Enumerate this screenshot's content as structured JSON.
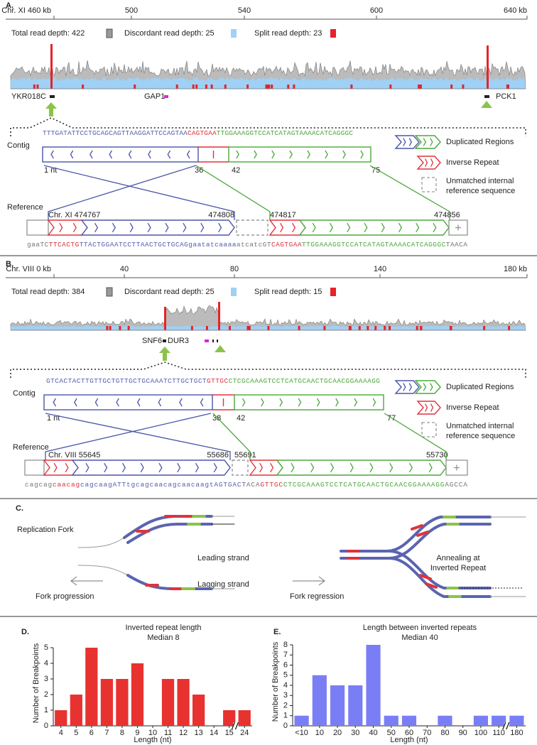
{
  "panel_a": {
    "label": "A.",
    "axis_labels": [
      "Chr. XI 460 kb",
      "500",
      "540",
      "600",
      "640 kb"
    ],
    "legend": [
      "Total read depth: 422",
      "Discordant read depth: 25",
      "Split read depth: 23"
    ],
    "genes": [
      "YKR018C",
      "GAP1",
      "PCK1"
    ],
    "contig": {
      "label": "Contig",
      "sequence": [
        {
          "text": "TTTGATATTCCTGCAGCAGTTAAGGATTCCAGTAA",
          "color": "#5560b0"
        },
        {
          "text": "CAGTGAA",
          "color": "#e0323c"
        },
        {
          "text": "TTGGAAAGGTCCATCATAGTAAAACATCAGGGC",
          "color": "#4aa83a"
        }
      ],
      "positions": [
        "1 nt",
        "36",
        "42",
        "75"
      ]
    },
    "reference": {
      "label": "Reference",
      "positions": [
        "Chr. XI 474767",
        "474808",
        "474817",
        "474856"
      ],
      "sequence": [
        {
          "text": "gaaTC",
          "color": "#777777"
        },
        {
          "text": "TTCACTG",
          "color": "#e0323c"
        },
        {
          "text": "TTACTGGAATCCTTAACTGCTGCAGgaatatcaaaa",
          "color": "#5560b0"
        },
        {
          "text": "atcatcGT",
          "color": "#777777"
        },
        {
          "text": "CAGTGAA",
          "color": "#e0323c"
        },
        {
          "text": "TTGGAAAGGTCCATCATAGTAAAACATCAGGGC",
          "color": "#4aa83a"
        },
        {
          "text": "TAACA",
          "color": "#777777"
        }
      ]
    },
    "key": [
      "Duplicated Regions",
      "Inverse Repeat",
      "Unmatched internal",
      "reference sequence"
    ]
  },
  "panel_b": {
    "label": "B.",
    "axis_labels": [
      "Chr. VIII 0 kb",
      "40",
      "80",
      "140",
      "180 kb"
    ],
    "legend": [
      "Total read depth: 384",
      "Discordant read depth: 25",
      "Split read depth: 15"
    ],
    "genes": [
      "SNF6",
      "DUR3"
    ],
    "contig": {
      "label": "Contig",
      "sequence": [
        {
          "text": "GTCACTACTTGTTGCTGTTGCTGCAAATCTTGCTGCT",
          "color": "#5560b0"
        },
        {
          "text": "GTTGC",
          "color": "#e0323c"
        },
        {
          "text": "CTCGCAAAGTCCTCATGCAACTGCAACGGAAAAGG",
          "color": "#4aa83a"
        }
      ],
      "positions": [
        "1 nt",
        "38",
        "42",
        "77"
      ]
    },
    "reference": {
      "label": "Reference",
      "positions": [
        "Chr. VIII 55645",
        "55686",
        "55691",
        "55730"
      ],
      "sequence": [
        {
          "text": "cagcag",
          "color": "#777777"
        },
        {
          "text": "caacag",
          "color": "#e0323c"
        },
        {
          "text": "cagcaagATTtgcagcaacagcaacaagtAGTGACT",
          "color": "#5560b0"
        },
        {
          "text": "ACA",
          "color": "#777777"
        },
        {
          "text": "GTTGC",
          "color": "#e0323c"
        },
        {
          "text": "CTCGCAAAGTCCTCATGCAACTGCAACGGAAAAGG",
          "color": "#4aa83a"
        },
        {
          "text": "AGCCA",
          "color": "#777777"
        }
      ]
    },
    "key": [
      "Duplicated Regions",
      "Inverse Repeat",
      "Unmatched internal",
      "reference sequence"
    ]
  },
  "panel_c": {
    "label": "C.",
    "texts": [
      "Replication Fork",
      "Leading strand",
      "Lagging strand",
      "Fork progression",
      "Fork regression",
      "Annealing at",
      "Inverted Repeat"
    ]
  },
  "chart_data": [
    {
      "type": "bar",
      "panel_label": "D.",
      "title": "Inverted repeat length",
      "subtitle": "Median 8",
      "x_label": "Length (nt)",
      "y_label": "Number of Breakpoints",
      "categories": [
        "4",
        "5",
        "6",
        "7",
        "8",
        "9",
        "10",
        "11",
        "12",
        "13",
        "14",
        "15",
        "24"
      ],
      "values": [
        1,
        2,
        5,
        3,
        3,
        4,
        0,
        3,
        3,
        2,
        0,
        1,
        1
      ],
      "color": "#e8322f",
      "ylim": [
        0,
        5
      ],
      "yticks": [
        0,
        1,
        2,
        3,
        4,
        5
      ]
    },
    {
      "type": "bar",
      "panel_label": "E.",
      "title": "Length between inverted repeats",
      "subtitle": "Median 40",
      "x_label": "Length (nt)",
      "y_label": "Number of Breakpoints",
      "categories": [
        "<10",
        "10",
        "20",
        "30",
        "40",
        "50",
        "60",
        "70",
        "80",
        "90",
        "100",
        "110",
        "180"
      ],
      "values": [
        1,
        5,
        4,
        4,
        8,
        1,
        1,
        0,
        1,
        0,
        1,
        1,
        1
      ],
      "color": "#7a7ef5",
      "ylim": [
        0,
        8
      ],
      "yticks": [
        0,
        1,
        2,
        3,
        4,
        5,
        6,
        7,
        8
      ]
    }
  ]
}
